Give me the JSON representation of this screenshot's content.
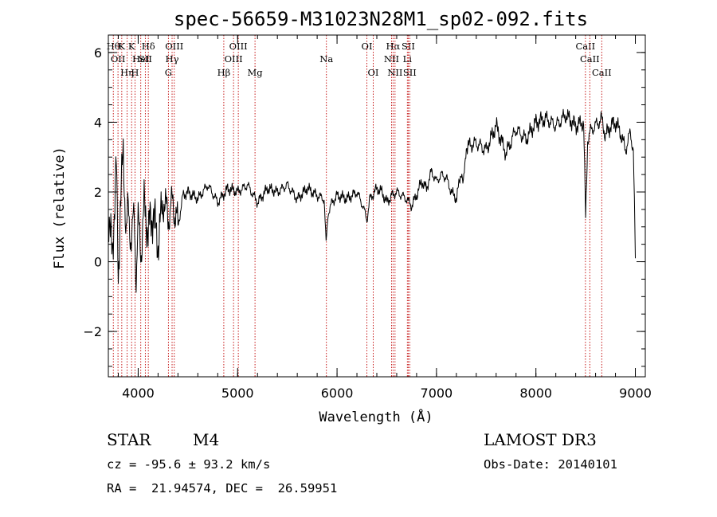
{
  "chart_data": {
    "type": "line",
    "title": "spec-56659-M31023N28M1_sp02-092.fits",
    "xlabel": "Wavelength (Å)",
    "ylabel": "Flux (relative)",
    "xlim": [
      3700,
      9100
    ],
    "ylim": [
      -3.3,
      6.5
    ],
    "xticks": [
      4000,
      5000,
      6000,
      7000,
      8000,
      9000
    ],
    "yticks": [
      -2,
      0,
      2,
      4,
      6
    ],
    "series": [
      {
        "name": "flux",
        "x": [
          3700,
          3740,
          3780,
          3800,
          3820,
          3850,
          3880,
          3900,
          3930,
          3960,
          3980,
          4000,
          4030,
          4060,
          4100,
          4150,
          4200,
          4250,
          4300,
          4350,
          4400,
          4450,
          4500,
          4600,
          4700,
          4800,
          4900,
          5000,
          5100,
          5200,
          5300,
          5400,
          5500,
          5600,
          5700,
          5800,
          5870,
          5890,
          5910,
          5950,
          6000,
          6100,
          6200,
          6260,
          6300,
          6330,
          6400,
          6450,
          6500,
          6550,
          6600,
          6700,
          6750,
          6800,
          6850,
          6900,
          6950,
          7000,
          7050,
          7100,
          7150,
          7200,
          7250,
          7270,
          7300,
          7400,
          7500,
          7600,
          7700,
          7800,
          7900,
          8000,
          8100,
          8200,
          8300,
          8400,
          8480,
          8500,
          8520,
          8560,
          8600,
          8660,
          8700,
          8750,
          8800,
          8850,
          8900,
          8950,
          8980,
          9000
        ],
        "y": [
          1.4,
          0.2,
          2.8,
          -0.5,
          1.6,
          3.1,
          0.8,
          1.5,
          0.6,
          1.3,
          -0.4,
          1.1,
          0.3,
          1.6,
          0.9,
          1.4,
          0.5,
          1.8,
          1.3,
          1.7,
          1.0,
          1.9,
          2.0,
          1.8,
          2.2,
          1.7,
          2.1,
          2.0,
          2.2,
          1.7,
          2.1,
          2.0,
          2.2,
          1.8,
          2.1,
          1.9,
          1.8,
          0.5,
          1.4,
          1.7,
          1.9,
          1.8,
          2.0,
          1.6,
          1.2,
          1.8,
          2.1,
          2.0,
          1.7,
          1.9,
          2.0,
          1.8,
          1.6,
          1.9,
          2.3,
          2.1,
          2.6,
          2.3,
          2.5,
          2.4,
          2.0,
          1.8,
          2.6,
          2.2,
          3.3,
          3.4,
          3.2,
          3.9,
          3.1,
          3.8,
          3.5,
          4.0,
          4.1,
          3.9,
          4.2,
          3.9,
          4.0,
          1.2,
          3.5,
          3.8,
          3.9,
          4.1,
          3.6,
          3.9,
          4.0,
          3.7,
          3.2,
          3.7,
          3.2,
          0.1
        ]
      }
    ],
    "lines": [
      {
        "wave": 3750,
        "row": 0,
        "label": "Hθ"
      },
      {
        "wave": 3797,
        "row": 1,
        "label": "OII"
      },
      {
        "wave": 3835,
        "row": 0,
        "label": "K"
      },
      {
        "wave": 3889,
        "row": 2,
        "label": "Hη"
      },
      {
        "wave": 3934,
        "row": 0,
        "label": "K"
      },
      {
        "wave": 3968,
        "row": 2,
        "label": "H"
      },
      {
        "wave": 4026,
        "row": 1,
        "label": "HeI"
      },
      {
        "wave": 4072,
        "row": 1,
        "label": "SII"
      },
      {
        "wave": 4102,
        "row": 0,
        "label": "Hδ"
      },
      {
        "wave": 4304,
        "row": 2,
        "label": "G"
      },
      {
        "wave": 4341,
        "row": 1,
        "label": "Hγ"
      },
      {
        "wave": 4363,
        "row": 0,
        "label": "OIII"
      },
      {
        "wave": 4861,
        "row": 2,
        "label": "Hβ"
      },
      {
        "wave": 4959,
        "row": 1,
        "label": "OIII"
      },
      {
        "wave": 5007,
        "row": 0,
        "label": "OIII"
      },
      {
        "wave": 5175,
        "row": 2,
        "label": "Mg"
      },
      {
        "wave": 5893,
        "row": 1,
        "label": "Na"
      },
      {
        "wave": 6300,
        "row": 0,
        "label": "OI"
      },
      {
        "wave": 6364,
        "row": 2,
        "label": "OI"
      },
      {
        "wave": 6548,
        "row": 1,
        "label": "NII"
      },
      {
        "wave": 6563,
        "row": 0,
        "label": "Hα"
      },
      {
        "wave": 6583,
        "row": 2,
        "label": "NII"
      },
      {
        "wave": 6707,
        "row": 1,
        "label": "Li"
      },
      {
        "wave": 6716,
        "row": 0,
        "label": "SII"
      },
      {
        "wave": 6731,
        "row": 2,
        "label": "SII"
      },
      {
        "wave": 8498,
        "row": 0,
        "label": "CaII"
      },
      {
        "wave": 8542,
        "row": 1,
        "label": "CaII"
      },
      {
        "wave": 8662,
        "row": 2,
        "label": "CaII"
      }
    ]
  },
  "info": {
    "class_label": "STAR",
    "subclass": "M4",
    "survey": "LAMOST DR3",
    "cz_line": "cz = -95.6 ± 93.2 km/s",
    "obsdate_line": "Obs-Date: 20140101",
    "radec_line": "RA =  21.94574, DEC =  26.59951"
  },
  "colors": {
    "line_marker": "#c00000",
    "spectrum": "#000000",
    "axes": "#000000"
  }
}
